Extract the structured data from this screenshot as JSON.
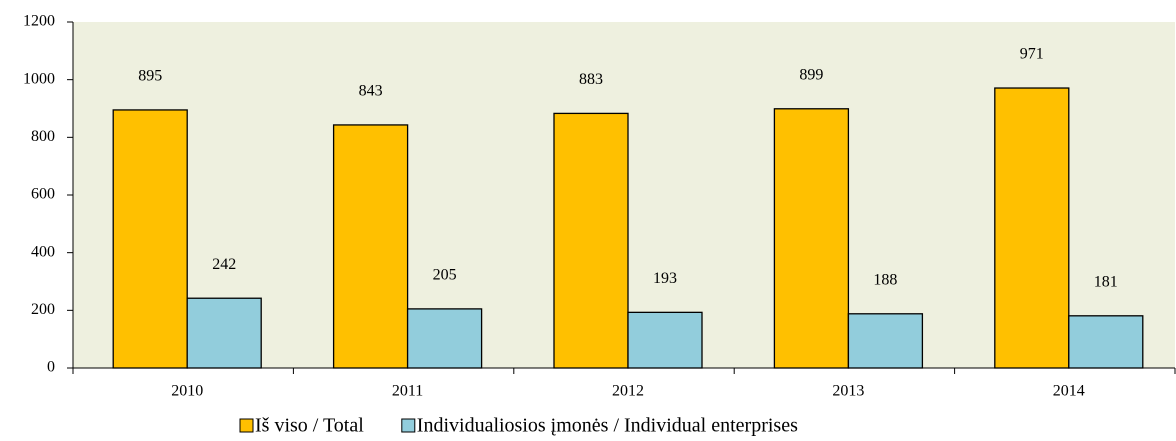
{
  "chart_data": {
    "type": "bar",
    "categories": [
      "2010",
      "2011",
      "2012",
      "2013",
      "2014"
    ],
    "series": [
      {
        "name": "Iš viso / Total",
        "color": "#ffc000",
        "values": [
          895,
          843,
          883,
          899,
          971
        ]
      },
      {
        "name": "Individualiosios įmonės / Individual enterprises",
        "color": "#92cddc",
        "values": [
          242,
          205,
          193,
          188,
          181
        ]
      }
    ],
    "ylim": [
      0,
      1200
    ],
    "yticks": [
      0,
      200,
      400,
      600,
      800,
      1000,
      1200
    ],
    "plot_background": "#eef0df",
    "legend": "bottom"
  }
}
